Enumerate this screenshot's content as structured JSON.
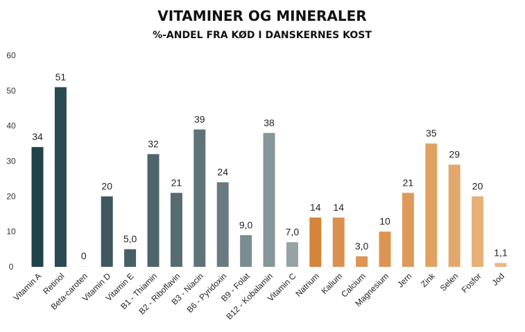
{
  "chart_data": {
    "type": "bar",
    "title": "VITAMINER OG MINERALER",
    "subtitle": "%-ANDEL FRA KØD I DANSKERNES KOST",
    "xlabel": "",
    "ylabel": "",
    "ylim": [
      0,
      60
    ],
    "yticks": [
      "0",
      "10",
      "20",
      "30",
      "40",
      "50",
      "60"
    ],
    "ytick_values": [
      0,
      10,
      20,
      30,
      40,
      50,
      60
    ],
    "grid": false,
    "legend": "none",
    "categories": [
      "Vitamin A",
      "Retinol",
      "Beta-caroten",
      "Vitamin D",
      "Vitamin E",
      "B1 - Thiamin",
      "B2 - Riboflavin",
      "B3 - Niacin",
      "B6 - Pyridoxin",
      "B9 - Folat",
      "B12 - Kobalamin",
      "Vitamin C",
      "Natrium",
      "Kalium",
      "Calcium",
      "Magnesium",
      "Jern",
      "Zink",
      "Selen",
      "Fosfor",
      "Jod"
    ],
    "values": [
      34,
      51,
      0,
      20,
      5.0,
      32,
      21,
      39,
      24,
      9.0,
      38,
      7.0,
      14,
      14,
      3.0,
      10,
      21,
      35,
      29,
      20,
      1.1
    ],
    "data_labels": [
      "34",
      "51",
      "0",
      "20",
      "5,0",
      "32",
      "21",
      "39",
      "24",
      "9,0",
      "38",
      "7,0",
      "14",
      "14",
      "3,0",
      "10",
      "21",
      "35",
      "29",
      "20",
      "1,1"
    ],
    "colors": [
      "#21434a",
      "#2a4a52",
      "#f2f2f2",
      "#3e585e",
      "#475f65",
      "#4e6569",
      "#576c70",
      "#5f7478",
      "#687c80",
      "#7b8d91",
      "#879799",
      "#95a3a5",
      "#d5843a",
      "#da9050",
      "#dc9555",
      "#dc9553",
      "#de9a5a",
      "#e0a262",
      "#e2a86c",
      "#e6b076",
      "#e9b885"
    ]
  }
}
